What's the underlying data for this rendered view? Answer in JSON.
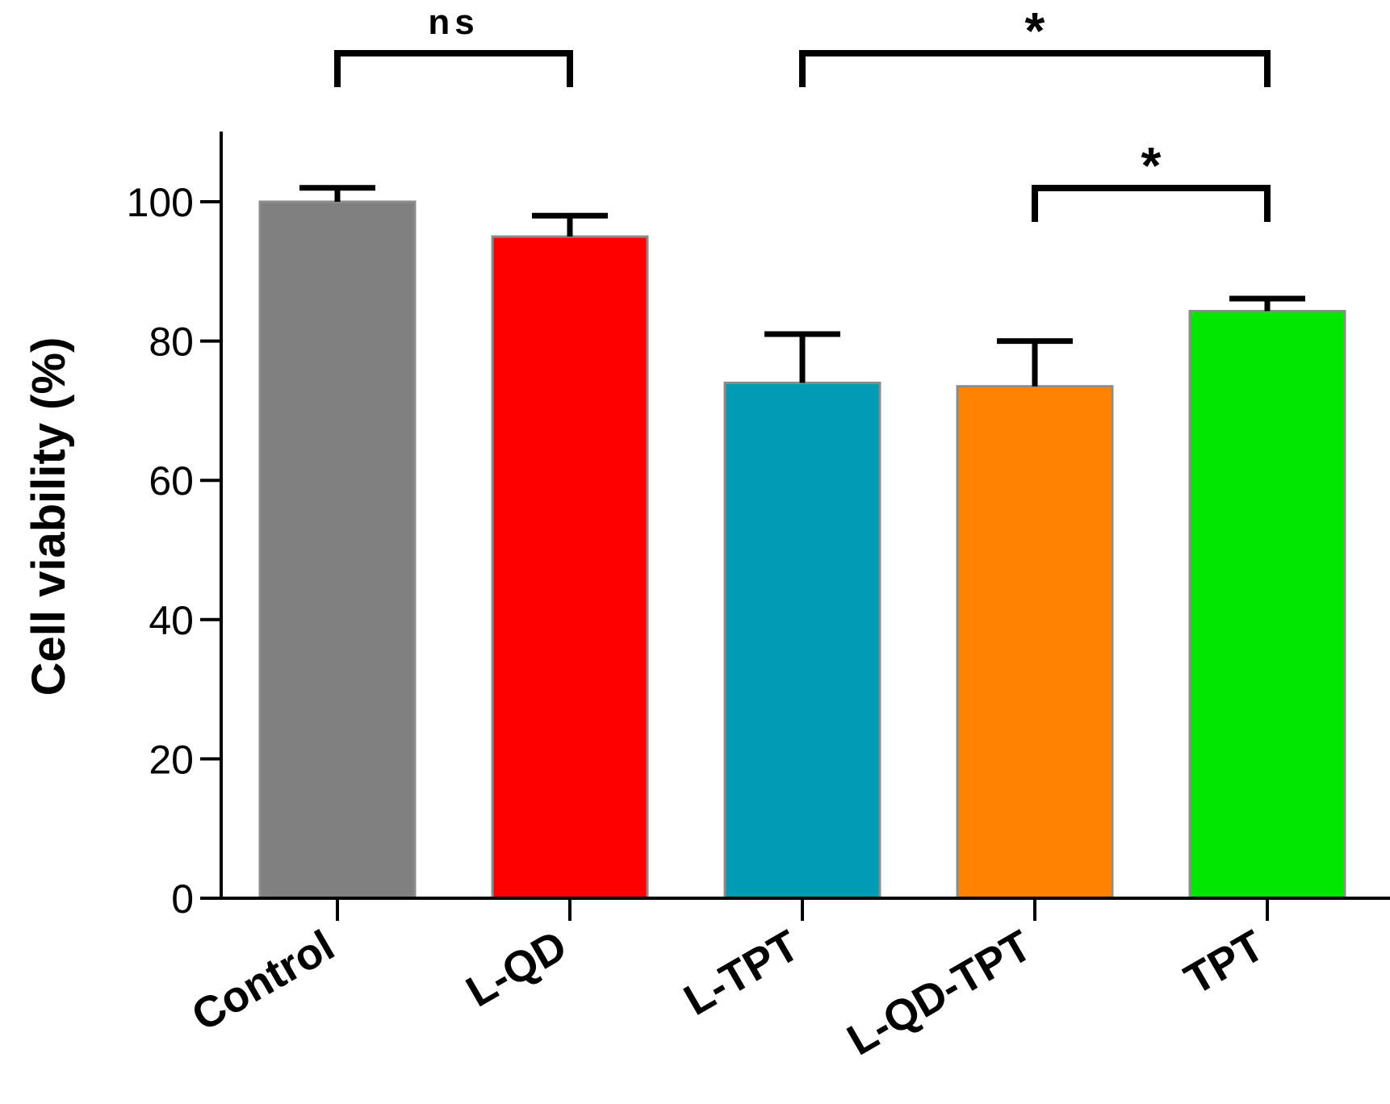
{
  "chart_data": {
    "type": "bar",
    "title": "",
    "xlabel": "",
    "ylabel": "Cell viability (%)",
    "ylim": [
      0,
      110
    ],
    "yticks": [
      0,
      20,
      40,
      60,
      80,
      100
    ],
    "categories": [
      "Control",
      "L-QD",
      "L-TPT",
      "L-QD-TPT",
      "TPT"
    ],
    "values": [
      100,
      95,
      74,
      73.5,
      84.3
    ],
    "errors": [
      2,
      3,
      7,
      6.5,
      1.8
    ],
    "colors": [
      "#808080",
      "#ff0000",
      "#009bb5",
      "#ff8200",
      "#00e600"
    ],
    "significance": [
      {
        "from": 0,
        "to": 1,
        "label": "ns"
      },
      {
        "from": 2,
        "to": 4,
        "label": "*"
      },
      {
        "from": 3,
        "to": 4,
        "label": "*"
      }
    ]
  }
}
